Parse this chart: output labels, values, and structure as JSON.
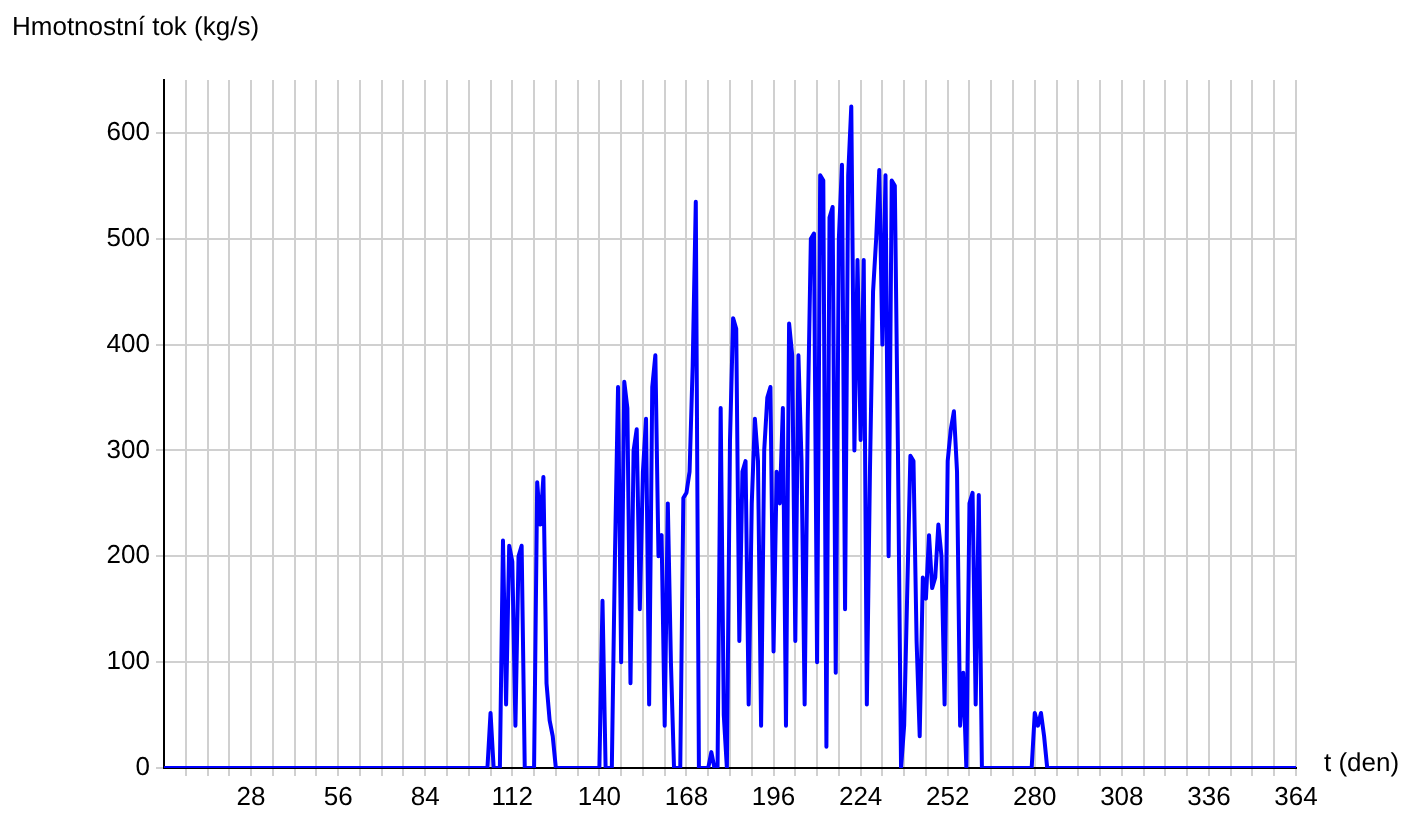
{
  "chart_data": {
    "type": "line",
    "ylabel": "Hmotnostní tok (kg/s)",
    "xlabel": "t (den)",
    "x": [
      0,
      104,
      105,
      106,
      108,
      109,
      110,
      111,
      112,
      113,
      114,
      115,
      116,
      119,
      120,
      121,
      122,
      123,
      124,
      125,
      126,
      140,
      141,
      142,
      144,
      145,
      146,
      147,
      148,
      149,
      150,
      151,
      152,
      153,
      154,
      155,
      156,
      157,
      158,
      159,
      160,
      161,
      162,
      163,
      164,
      166,
      167,
      168,
      169,
      170,
      171,
      172,
      175,
      176,
      177,
      178,
      179,
      180,
      181,
      182,
      183,
      184,
      185,
      186,
      187,
      188,
      189,
      190,
      191,
      192,
      193,
      194,
      195,
      196,
      197,
      198,
      199,
      200,
      201,
      202,
      203,
      204,
      205,
      206,
      207,
      208,
      209,
      210,
      211,
      212,
      213,
      214,
      215,
      216,
      217,
      218,
      219,
      220,
      221,
      222,
      223,
      224,
      225,
      226,
      227,
      228,
      229,
      230,
      231,
      232,
      233,
      234,
      235,
      236,
      237,
      238,
      240,
      241,
      242,
      243,
      244,
      245,
      246,
      247,
      248,
      249,
      250,
      251,
      252,
      253,
      254,
      255,
      256,
      257,
      258,
      259,
      260,
      261,
      262,
      263,
      279,
      280,
      281,
      282,
      283,
      284,
      364
    ],
    "series": [
      {
        "color": "#0000ff",
        "values": [
          0,
          0,
          52,
          0,
          0,
          215,
          60,
          210,
          195,
          40,
          200,
          210,
          0,
          0,
          270,
          230,
          275,
          80,
          45,
          30,
          0,
          0,
          158,
          0,
          0,
          200,
          360,
          100,
          365,
          340,
          80,
          300,
          320,
          150,
          280,
          330,
          60,
          360,
          390,
          200,
          220,
          40,
          250,
          100,
          0,
          0,
          255,
          260,
          280,
          380,
          535,
          0,
          0,
          15,
          0,
          0,
          340,
          50,
          0,
          310,
          425,
          415,
          120,
          280,
          290,
          60,
          250,
          330,
          290,
          40,
          300,
          350,
          360,
          110,
          280,
          250,
          340,
          40,
          420,
          390,
          120,
          390,
          290,
          60,
          330,
          500,
          505,
          100,
          560,
          555,
          20,
          520,
          530,
          90,
          500,
          570,
          150,
          560,
          625,
          300,
          480,
          310,
          480,
          60,
          280,
          450,
          500,
          565,
          400,
          560,
          200,
          555,
          550,
          300,
          0,
          40,
          295,
          290,
          120,
          30,
          180,
          160,
          220,
          170,
          180,
          230,
          200,
          60,
          290,
          320,
          337,
          280,
          40,
          90,
          0,
          250,
          260,
          60,
          258,
          0,
          0,
          52,
          40,
          52,
          30,
          0,
          0
        ]
      }
    ],
    "xlim": [
      0,
      364
    ],
    "ylim": [
      0,
      650
    ],
    "xticks": [
      {
        "value": 7,
        "label": null
      },
      {
        "value": 14,
        "label": null
      },
      {
        "value": 21,
        "label": null
      },
      28,
      {
        "value": 35,
        "label": null
      },
      {
        "value": 42,
        "label": null
      },
      {
        "value": 49,
        "label": null
      },
      56,
      {
        "value": 63,
        "label": null
      },
      {
        "value": 70,
        "label": null
      },
      {
        "value": 77,
        "label": null
      },
      84,
      {
        "value": 91,
        "label": null
      },
      {
        "value": 98,
        "label": null
      },
      {
        "value": 105,
        "label": null
      },
      112,
      {
        "value": 119,
        "label": null
      },
      {
        "value": 126,
        "label": null
      },
      {
        "value": 133,
        "label": null
      },
      140,
      {
        "value": 147,
        "label": null
      },
      {
        "value": 154,
        "label": null
      },
      {
        "value": 161,
        "label": null
      },
      168,
      {
        "value": 175,
        "label": null
      },
      {
        "value": 182,
        "label": null
      },
      {
        "value": 189,
        "label": null
      },
      196,
      {
        "value": 203,
        "label": null
      },
      {
        "value": 210,
        "label": null
      },
      {
        "value": 217,
        "label": null
      },
      224,
      {
        "value": 231,
        "label": null
      },
      {
        "value": 238,
        "label": null
      },
      {
        "value": 245,
        "label": null
      },
      252,
      {
        "value": 259,
        "label": null
      },
      {
        "value": 266,
        "label": null
      },
      {
        "value": 273,
        "label": null
      },
      280,
      {
        "value": 287,
        "label": null
      },
      {
        "value": 294,
        "label": null
      },
      {
        "value": 301,
        "label": null
      },
      308,
      {
        "value": 315,
        "label": null
      },
      {
        "value": 322,
        "label": null
      },
      {
        "value": 329,
        "label": null
      },
      336,
      {
        "value": 343,
        "label": null
      },
      {
        "value": 350,
        "label": null
      },
      {
        "value": 357,
        "label": null
      },
      364
    ],
    "yticks": [
      0,
      100,
      200,
      300,
      400,
      500,
      600
    ],
    "grid": true,
    "marker": "none",
    "line_style": "solid",
    "legend": false
  }
}
